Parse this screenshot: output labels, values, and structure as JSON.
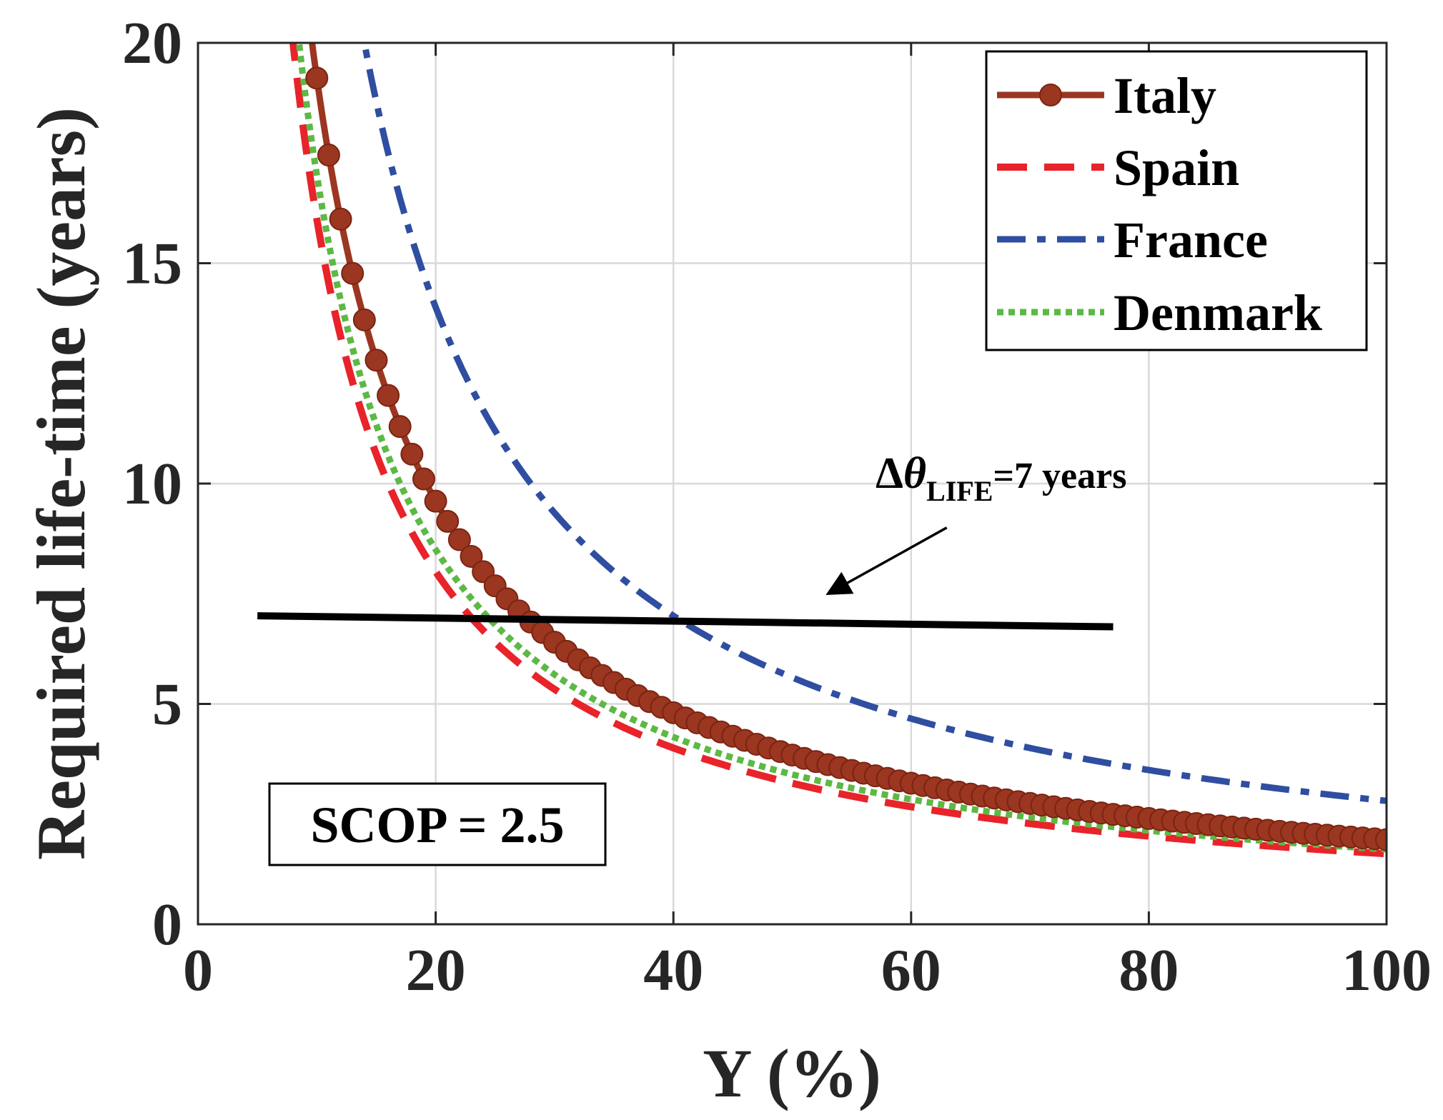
{
  "chart_data": {
    "type": "line",
    "xlabel": "Y (%)",
    "ylabel": "Required life-time (years)",
    "xlim": [
      0,
      100
    ],
    "ylim": [
      0,
      20
    ],
    "xticks": [
      0,
      20,
      40,
      60,
      80,
      100
    ],
    "yticks": [
      0,
      5,
      10,
      15,
      20
    ],
    "grid": true,
    "legend_position": "top-right",
    "series": [
      {
        "name": "Italy",
        "color": "#9b3620",
        "style": "solid-circle-markers",
        "k": 192,
        "x_start": 9,
        "x_end": 100,
        "x_step": 1
      },
      {
        "name": "Spain",
        "color": "#e8232a",
        "style": "dashed",
        "k": 160,
        "x_start": 7.5,
        "x_end": 100
      },
      {
        "name": "France",
        "color": "#2f4ea1",
        "style": "dash-dot",
        "k": 280,
        "x_start": 13.5,
        "x_end": 100
      },
      {
        "name": "Denmark",
        "color": "#5cb944",
        "style": "dotted",
        "k": 170,
        "x_start": 8,
        "x_end": 100
      }
    ],
    "reference_line": {
      "x": [
        5,
        77
      ],
      "y": [
        7.0,
        6.75
      ],
      "color": "#000000"
    },
    "annotation": {
      "prefix": "Δ",
      "symbol": "θ",
      "subscript": "LIFE",
      "suffix": "=7 years",
      "arrow_from": [
        63,
        9.0
      ],
      "arrow_to": [
        53,
        7.5
      ]
    },
    "textbox": "SCOP = 2.5"
  }
}
